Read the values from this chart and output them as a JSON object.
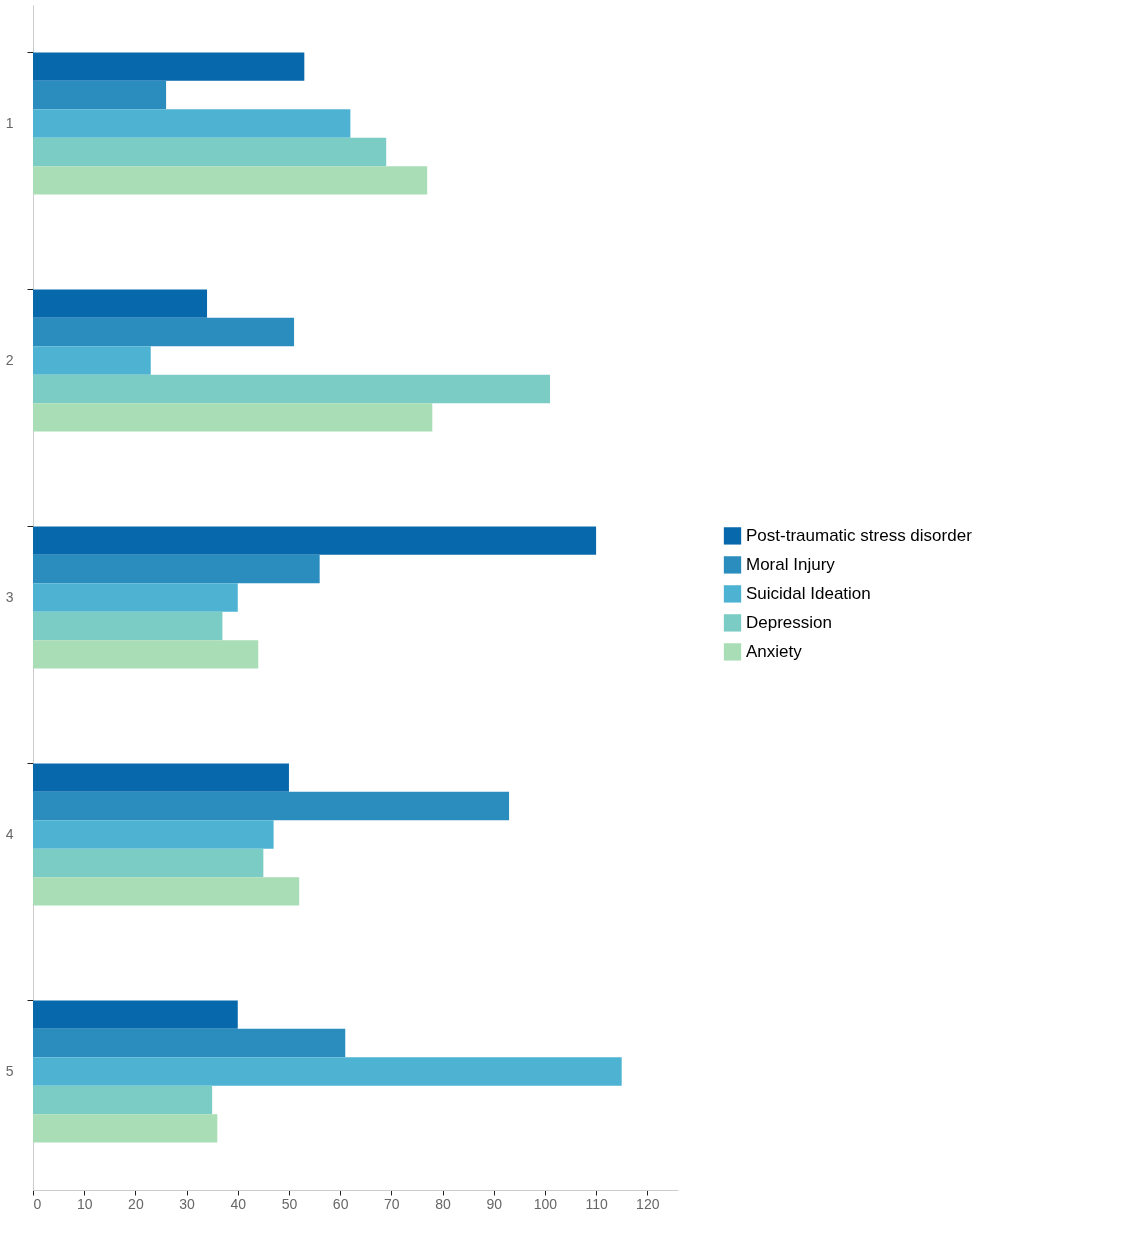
{
  "chart_data": {
    "type": "bar",
    "orientation": "horizontal",
    "categories": [
      "1",
      "2",
      "3",
      "4",
      "5"
    ],
    "series": [
      {
        "name": "Post-traumatic stress disorder",
        "color": "#0868ac",
        "values": [
          53,
          34,
          110,
          50,
          40
        ]
      },
      {
        "name": "Moral Injury",
        "color": "#2b8cbe",
        "values": [
          26,
          51,
          56,
          93,
          61
        ]
      },
      {
        "name": "Suicidal Ideation",
        "color": "#4eb3d3",
        "values": [
          62,
          23,
          40,
          47,
          115
        ]
      },
      {
        "name": "Depression",
        "color": "#7bccc4",
        "values": [
          69,
          101,
          37,
          45,
          35
        ]
      },
      {
        "name": "Anxiety",
        "color": "#a8ddb5",
        "values": [
          77,
          78,
          44,
          52,
          36
        ]
      }
    ],
    "xlim": [
      0,
      126
    ],
    "xticks": [
      0,
      10,
      20,
      30,
      40,
      50,
      60,
      70,
      80,
      90,
      100,
      110,
      120
    ],
    "grid": false,
    "legend": "right"
  }
}
